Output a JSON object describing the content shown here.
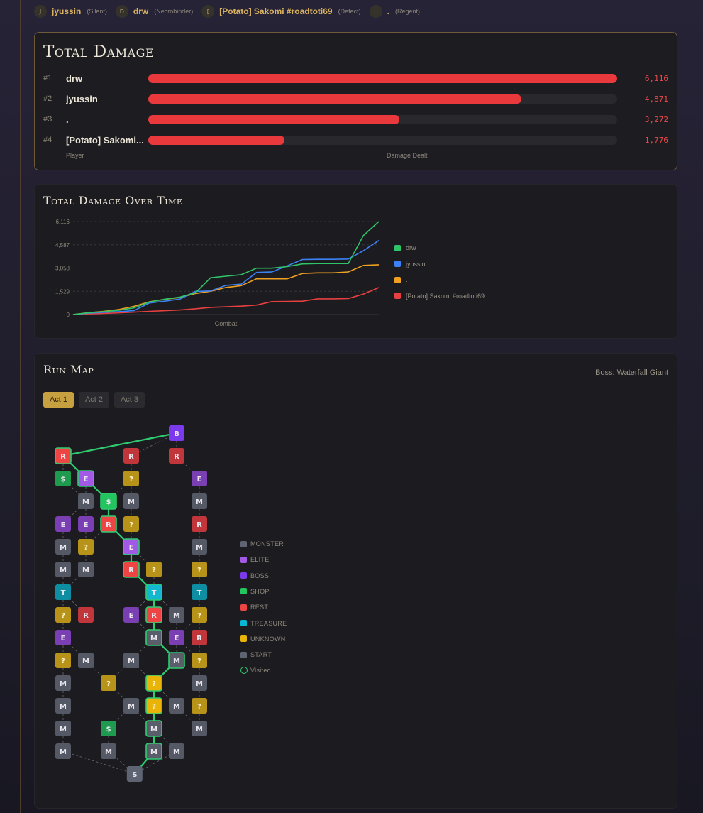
{
  "players": [
    {
      "initial": "J",
      "name": "jyussin",
      "class": "(Silent)"
    },
    {
      "initial": "D",
      "name": "drw",
      "class": "(Necrobinder)"
    },
    {
      "initial": "[",
      "name": "[Potato] Sakomi #roadtoti69",
      "class": "(Defect)"
    },
    {
      "initial": ".",
      "name": ".",
      "class": "(Regent)"
    }
  ],
  "total_damage": {
    "title": "Total Damage",
    "max": 6116,
    "rows": [
      {
        "rank": "#1",
        "name": "drw",
        "value": 6116,
        "label": "6,116"
      },
      {
        "rank": "#2",
        "name": "jyussin",
        "value": 4871,
        "label": "4,871"
      },
      {
        "rank": "#3",
        "name": ".",
        "value": 3272,
        "label": "3,272"
      },
      {
        "rank": "#4",
        "name": "[Potato] Sakomi...",
        "value": 1776,
        "label": "1,776"
      }
    ],
    "col_player": "Player",
    "col_damage": "Damage Dealt"
  },
  "over_time": {
    "title": "Total Damage Over Time",
    "chart_data": {
      "type": "line",
      "xlabel": "Combat",
      "ylabel": "",
      "ylim": [
        0,
        6116
      ],
      "yticks": [
        "0",
        "1,529",
        "3,058",
        "4,587",
        "6,116"
      ],
      "ytick_values": [
        0,
        1529,
        3058,
        4587,
        6116
      ],
      "grid": true,
      "legend_position": "right",
      "x": [
        0,
        1,
        2,
        3,
        4,
        5,
        6,
        7,
        8,
        9,
        10,
        11,
        12,
        13,
        14,
        15,
        16,
        17,
        18,
        19,
        20
      ],
      "series": [
        {
          "name": "drw",
          "color": "#2fc46a",
          "values": [
            0,
            110,
            190,
            280,
            440,
            820,
            1010,
            1150,
            1430,
            2420,
            2520,
            2620,
            3050,
            3050,
            3150,
            3330,
            3350,
            3350,
            3350,
            5200,
            6116
          ]
        },
        {
          "name": "jyussin",
          "color": "#3b82f6",
          "values": [
            0,
            90,
            140,
            190,
            260,
            760,
            880,
            1020,
            1520,
            1550,
            1920,
            2000,
            2770,
            2800,
            3200,
            3620,
            3630,
            3630,
            3650,
            4200,
            4871
          ]
        },
        {
          "name": ".",
          "color": "#f0a020",
          "values": [
            0,
            120,
            210,
            330,
            540,
            840,
            1000,
            1120,
            1380,
            1530,
            1780,
            1900,
            2350,
            2350,
            2350,
            2700,
            2740,
            2740,
            2800,
            3230,
            3272
          ]
        },
        {
          "name": "[Potato] Sakomi #roadtoti69",
          "color": "#e84040",
          "values": [
            0,
            40,
            70,
            110,
            160,
            210,
            250,
            300,
            380,
            470,
            510,
            550,
            620,
            850,
            860,
            880,
            1030,
            1030,
            1050,
            1350,
            1776
          ]
        }
      ]
    }
  },
  "run_map": {
    "title": "Run Map",
    "boss_label": "Boss: Waterfall Giant",
    "tabs": [
      "Act 1",
      "Act 2",
      "Act 3"
    ],
    "active_tab": 0,
    "legend": [
      {
        "label": "MONSTER",
        "color": "#5f6472"
      },
      {
        "label": "ELITE",
        "color": "#a259e6"
      },
      {
        "label": "BOSS",
        "color": "#7c3aed"
      },
      {
        "label": "SHOP",
        "color": "#22c55e"
      },
      {
        "label": "REST",
        "color": "#ef4444"
      },
      {
        "label": "TREASURE",
        "color": "#06b6d4"
      },
      {
        "label": "UNKNOWN",
        "color": "#eab308"
      },
      {
        "label": "START",
        "color": "#5f6472"
      },
      {
        "label": "Visited",
        "color": "#2ecc71"
      }
    ],
    "node_colors": {
      "M": "#555966",
      "E": "#7a3fb3",
      "B": "#7c3aed",
      "$": "#1e9b4f",
      "R": "#c0363a",
      "T": "#0e8ea3",
      "?": "#b8931a",
      "S": "#5f6472"
    },
    "visited_colors": {
      "M": "#5a5e6a",
      "E": "#a259e6",
      "$": "#22c55e",
      "R": "#ef4444",
      "T": "#13b7cf",
      "?": "#eab308"
    },
    "nodes": [
      {
        "id": "b",
        "t": "B",
        "c": 5,
        "r": 0
      },
      {
        "id": "n1a",
        "t": "R",
        "c": 0,
        "r": 1,
        "v": true
      },
      {
        "id": "n1b",
        "t": "R",
        "c": 3,
        "r": 1
      },
      {
        "id": "n1c",
        "t": "R",
        "c": 5,
        "r": 1
      },
      {
        "id": "n2a",
        "t": "$",
        "c": 0,
        "r": 2
      },
      {
        "id": "n2b",
        "t": "E",
        "c": 1,
        "r": 2,
        "v": true
      },
      {
        "id": "n2c",
        "t": "?",
        "c": 3,
        "r": 2
      },
      {
        "id": "n2d",
        "t": "E",
        "c": 6,
        "r": 2
      },
      {
        "id": "n3a",
        "t": "M",
        "c": 1,
        "r": 3
      },
      {
        "id": "n3b",
        "t": "$",
        "c": 2,
        "r": 3,
        "v": true
      },
      {
        "id": "n3c",
        "t": "M",
        "c": 3,
        "r": 3
      },
      {
        "id": "n3d",
        "t": "M",
        "c": 6,
        "r": 3
      },
      {
        "id": "n4a",
        "t": "E",
        "c": 0,
        "r": 4
      },
      {
        "id": "n4b",
        "t": "E",
        "c": 1,
        "r": 4
      },
      {
        "id": "n4c",
        "t": "R",
        "c": 2,
        "r": 4,
        "v": true
      },
      {
        "id": "n4d",
        "t": "?",
        "c": 3,
        "r": 4
      },
      {
        "id": "n4e",
        "t": "R",
        "c": 6,
        "r": 4
      },
      {
        "id": "n5a",
        "t": "M",
        "c": 0,
        "r": 5
      },
      {
        "id": "n5b",
        "t": "?",
        "c": 1,
        "r": 5
      },
      {
        "id": "n5c",
        "t": "E",
        "c": 3,
        "r": 5,
        "v": true
      },
      {
        "id": "n5d",
        "t": "M",
        "c": 6,
        "r": 5
      },
      {
        "id": "n6a",
        "t": "M",
        "c": 0,
        "r": 6
      },
      {
        "id": "n6b",
        "t": "M",
        "c": 1,
        "r": 6
      },
      {
        "id": "n6c",
        "t": "R",
        "c": 3,
        "r": 6,
        "v": true
      },
      {
        "id": "n6d",
        "t": "?",
        "c": 4,
        "r": 6
      },
      {
        "id": "n6e",
        "t": "?",
        "c": 6,
        "r": 6
      },
      {
        "id": "n7a",
        "t": "T",
        "c": 0,
        "r": 7
      },
      {
        "id": "n7b",
        "t": "T",
        "c": 4,
        "r": 7,
        "v": true
      },
      {
        "id": "n7c",
        "t": "T",
        "c": 6,
        "r": 7
      },
      {
        "id": "n8a",
        "t": "?",
        "c": 0,
        "r": 8
      },
      {
        "id": "n8b",
        "t": "R",
        "c": 1,
        "r": 8
      },
      {
        "id": "n8c",
        "t": "E",
        "c": 3,
        "r": 8
      },
      {
        "id": "n8d",
        "t": "R",
        "c": 4,
        "r": 8,
        "v": true
      },
      {
        "id": "n8e",
        "t": "M",
        "c": 5,
        "r": 8
      },
      {
        "id": "n8f",
        "t": "?",
        "c": 6,
        "r": 8
      },
      {
        "id": "n9a",
        "t": "E",
        "c": 0,
        "r": 9
      },
      {
        "id": "n9b",
        "t": "M",
        "c": 4,
        "r": 9,
        "v": true
      },
      {
        "id": "n9c",
        "t": "E",
        "c": 5,
        "r": 9
      },
      {
        "id": "n9d",
        "t": "R",
        "c": 6,
        "r": 9
      },
      {
        "id": "n10a",
        "t": "?",
        "c": 0,
        "r": 10
      },
      {
        "id": "n10b",
        "t": "M",
        "c": 1,
        "r": 10
      },
      {
        "id": "n10c",
        "t": "M",
        "c": 3,
        "r": 10
      },
      {
        "id": "n10d",
        "t": "M",
        "c": 5,
        "r": 10,
        "v": true
      },
      {
        "id": "n10e",
        "t": "?",
        "c": 6,
        "r": 10
      },
      {
        "id": "n11a",
        "t": "M",
        "c": 0,
        "r": 11
      },
      {
        "id": "n11b",
        "t": "?",
        "c": 2,
        "r": 11
      },
      {
        "id": "n11c",
        "t": "?",
        "c": 4,
        "r": 11,
        "v": true
      },
      {
        "id": "n11d",
        "t": "M",
        "c": 6,
        "r": 11
      },
      {
        "id": "n12a",
        "t": "M",
        "c": 0,
        "r": 12
      },
      {
        "id": "n12b",
        "t": "M",
        "c": 3,
        "r": 12
      },
      {
        "id": "n12c",
        "t": "?",
        "c": 4,
        "r": 12,
        "v": true
      },
      {
        "id": "n12d",
        "t": "M",
        "c": 5,
        "r": 12
      },
      {
        "id": "n12e",
        "t": "?",
        "c": 6,
        "r": 12
      },
      {
        "id": "n13a",
        "t": "M",
        "c": 0,
        "r": 13
      },
      {
        "id": "n13b",
        "t": "$",
        "c": 2,
        "r": 13
      },
      {
        "id": "n13c",
        "t": "M",
        "c": 4,
        "r": 13,
        "v": true
      },
      {
        "id": "n13d",
        "t": "M",
        "c": 6,
        "r": 13
      },
      {
        "id": "n14a",
        "t": "M",
        "c": 0,
        "r": 14
      },
      {
        "id": "n14b",
        "t": "M",
        "c": 2,
        "r": 14
      },
      {
        "id": "n14c",
        "t": "M",
        "c": 4,
        "r": 14,
        "v": true
      },
      {
        "id": "n14d",
        "t": "M",
        "c": 5,
        "r": 14
      },
      {
        "id": "s",
        "t": "S",
        "c": 3.15,
        "r": 15,
        "v": true
      }
    ],
    "visited_path": [
      "s",
      "n14c",
      "n13c",
      "n12c",
      "n11c",
      "n10d",
      "n9b",
      "n8d",
      "n7b",
      "n6c",
      "n5c",
      "n4c",
      "n3b",
      "n2b",
      "n1a",
      "b"
    ],
    "edges": [
      [
        "s",
        "n14a"
      ],
      [
        "s",
        "n14b"
      ],
      [
        "s",
        "n14d"
      ],
      [
        "n14a",
        "n13a"
      ],
      [
        "n14b",
        "n13b"
      ],
      [
        "n14c",
        "n13c"
      ],
      [
        "n14d",
        "n13c"
      ],
      [
        "n13a",
        "n12a"
      ],
      [
        "n13b",
        "n12b"
      ],
      [
        "n13c",
        "n12b"
      ],
      [
        "n13d",
        "n12e"
      ],
      [
        "n13d",
        "n12d"
      ],
      [
        "n12a",
        "n11a"
      ],
      [
        "n12b",
        "n11b"
      ],
      [
        "n12c",
        "n11c"
      ],
      [
        "n12d",
        "n11c"
      ],
      [
        "n12e",
        "n11d"
      ],
      [
        "n11a",
        "n10a"
      ],
      [
        "n11b",
        "n10b"
      ],
      [
        "n11b",
        "n10c"
      ],
      [
        "n11c",
        "n10c"
      ],
      [
        "n11d",
        "n10e"
      ],
      [
        "n10a",
        "n9a"
      ],
      [
        "n10b",
        "n9a"
      ],
      [
        "n10c",
        "n9b"
      ],
      [
        "n10d",
        "n9c"
      ],
      [
        "n10e",
        "n9d"
      ],
      [
        "n10e",
        "n9c"
      ],
      [
        "n9a",
        "n8a"
      ],
      [
        "n9b",
        "n8c"
      ],
      [
        "n9c",
        "n8e"
      ],
      [
        "n9d",
        "n8f"
      ],
      [
        "n9c",
        "n8f"
      ],
      [
        "n8a",
        "n7a"
      ],
      [
        "n8b",
        "n7a"
      ],
      [
        "n8c",
        "n7b"
      ],
      [
        "n8e",
        "n7b"
      ],
      [
        "n8f",
        "n7c"
      ],
      [
        "n7a",
        "n6a"
      ],
      [
        "n7a",
        "n6b"
      ],
      [
        "n7b",
        "n6d"
      ],
      [
        "n7c",
        "n6e"
      ],
      [
        "n6a",
        "n5a"
      ],
      [
        "n6b",
        "n5b"
      ],
      [
        "n6d",
        "n5c"
      ],
      [
        "n6e",
        "n5d"
      ],
      [
        "n5a",
        "n4a"
      ],
      [
        "n5b",
        "n4b"
      ],
      [
        "n5b",
        "n4c"
      ],
      [
        "n5c",
        "n4d"
      ],
      [
        "n5d",
        "n4e"
      ],
      [
        "n4a",
        "n3a"
      ],
      [
        "n4b",
        "n3a"
      ],
      [
        "n4d",
        "n3c"
      ],
      [
        "n4e",
        "n3d"
      ],
      [
        "n3a",
        "n2a"
      ],
      [
        "n3a",
        "n2b"
      ],
      [
        "n3c",
        "n2c"
      ],
      [
        "n3b",
        "n2c"
      ],
      [
        "n3d",
        "n2d"
      ],
      [
        "n2a",
        "n1a"
      ],
      [
        "n2c",
        "n1b"
      ],
      [
        "n2d",
        "n1c"
      ],
      [
        "n1b",
        "b"
      ],
      [
        "n1c",
        "b"
      ]
    ]
  }
}
